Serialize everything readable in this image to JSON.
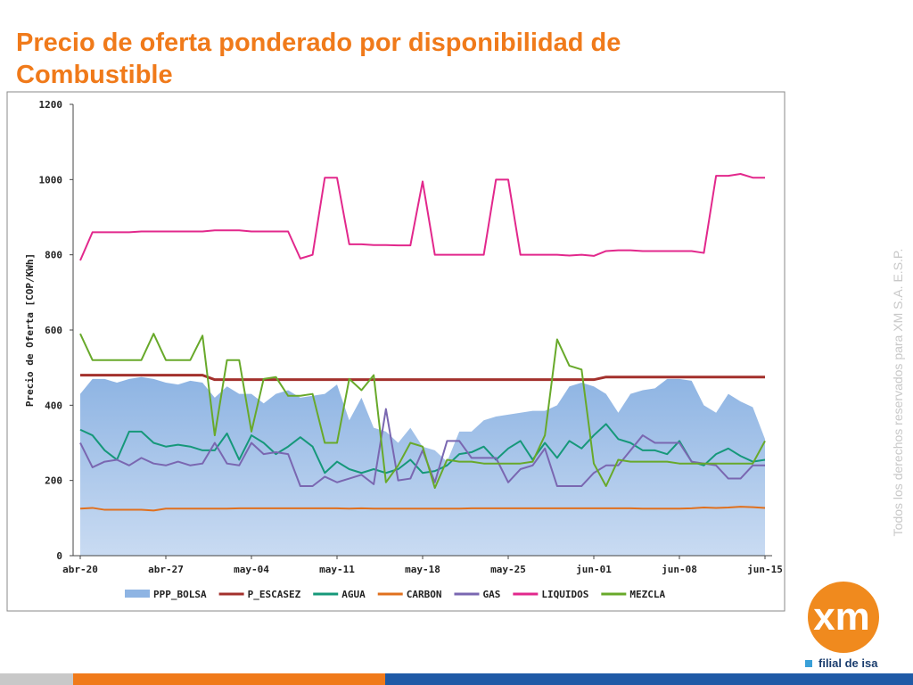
{
  "chart_data": {
    "type": "line",
    "title": "Precio de oferta ponderado por disponibilidad de Combustible",
    "ylabel": "Precio de Oferta [COP/KWh]",
    "categories": [
      "abr-20",
      null,
      null,
      null,
      null,
      null,
      null,
      "abr-27",
      null,
      null,
      null,
      null,
      null,
      null,
      "may-04",
      null,
      null,
      null,
      null,
      null,
      null,
      "may-11",
      null,
      null,
      null,
      null,
      null,
      null,
      "may-18",
      null,
      null,
      null,
      null,
      null,
      null,
      "may-25",
      null,
      null,
      null,
      null,
      null,
      null,
      "jun-01",
      null,
      null,
      null,
      null,
      null,
      null,
      "jun-08",
      null,
      null,
      null,
      null,
      null,
      null,
      "jun-15"
    ],
    "ylim": [
      0,
      1200
    ],
    "yticks": [
      0,
      200,
      400,
      600,
      800,
      1000,
      1200
    ],
    "grid": false,
    "series": [
      {
        "name": "PPP_BOLSA",
        "style": "area",
        "color": "#8eb4e3",
        "values": [
          430,
          470,
          470,
          460,
          470,
          475,
          470,
          460,
          455,
          465,
          460,
          420,
          450,
          430,
          430,
          405,
          430,
          440,
          420,
          425,
          430,
          455,
          360,
          420,
          340,
          330,
          300,
          340,
          290,
          280,
          250,
          330,
          330,
          360,
          370,
          375,
          380,
          385,
          385,
          400,
          450,
          460,
          450,
          430,
          380,
          430,
          440,
          445,
          470,
          470,
          465,
          400,
          380,
          430,
          410,
          395,
          310
        ]
      },
      {
        "name": "P_ESCASEZ",
        "style": "line",
        "color": "#a3302c",
        "values": [
          480,
          480,
          480,
          480,
          480,
          480,
          480,
          480,
          480,
          480,
          480,
          468,
          468,
          468,
          468,
          468,
          468,
          468,
          468,
          468,
          468,
          468,
          468,
          468,
          468,
          468,
          468,
          468,
          468,
          468,
          468,
          468,
          468,
          468,
          468,
          468,
          468,
          468,
          468,
          468,
          468,
          468,
          468,
          475,
          475,
          475,
          475,
          475,
          475,
          475,
          475,
          475,
          475,
          475,
          475,
          475,
          475
        ]
      },
      {
        "name": "AGUA",
        "style": "line",
        "color": "#16987a",
        "values": [
          335,
          320,
          280,
          255,
          330,
          330,
          300,
          290,
          295,
          290,
          280,
          280,
          325,
          255,
          320,
          300,
          270,
          290,
          315,
          290,
          220,
          250,
          230,
          220,
          230,
          220,
          230,
          255,
          220,
          225,
          240,
          270,
          275,
          290,
          255,
          285,
          305,
          255,
          300,
          260,
          305,
          285,
          320,
          350,
          310,
          300,
          280,
          280,
          270,
          305,
          250,
          240,
          270,
          285,
          265,
          250,
          255
        ]
      },
      {
        "name": "CARBON",
        "style": "line",
        "color": "#e0701e",
        "values": [
          125,
          127,
          122,
          122,
          122,
          122,
          120,
          125,
          125,
          125,
          125,
          125,
          125,
          126,
          126,
          126,
          126,
          126,
          126,
          126,
          126,
          126,
          125,
          126,
          125,
          125,
          125,
          125,
          125,
          125,
          125,
          125,
          126,
          126,
          126,
          126,
          126,
          126,
          126,
          126,
          126,
          126,
          126,
          126,
          126,
          126,
          125,
          125,
          125,
          125,
          126,
          128,
          127,
          128,
          130,
          129,
          127
        ]
      },
      {
        "name": "GAS",
        "style": "line",
        "color": "#7a67b1",
        "values": [
          300,
          235,
          250,
          255,
          240,
          260,
          245,
          240,
          250,
          240,
          245,
          300,
          245,
          240,
          300,
          270,
          275,
          270,
          185,
          185,
          210,
          195,
          205,
          215,
          190,
          390,
          200,
          205,
          280,
          195,
          305,
          305,
          260,
          260,
          260,
          195,
          230,
          240,
          285,
          185,
          185,
          185,
          220,
          240,
          240,
          280,
          320,
          300,
          300,
          300,
          250,
          245,
          240,
          205,
          205,
          240,
          240
        ]
      },
      {
        "name": "LIQUIDOS",
        "style": "line",
        "color": "#e2288c",
        "values": [
          785,
          860,
          860,
          860,
          860,
          862,
          862,
          862,
          862,
          862,
          862,
          865,
          865,
          865,
          862,
          862,
          862,
          862,
          790,
          800,
          1005,
          1005,
          828,
          828,
          826,
          826,
          825,
          825,
          995,
          800,
          800,
          800,
          800,
          800,
          1000,
          1000,
          800,
          800,
          800,
          800,
          798,
          800,
          797,
          810,
          812,
          812,
          810,
          810,
          810,
          810,
          810,
          805,
          1010,
          1010,
          1015,
          1005,
          1005
        ]
      },
      {
        "name": "MEZCLA",
        "style": "line",
        "color": "#68a92a",
        "values": [
          590,
          520,
          520,
          520,
          520,
          520,
          590,
          520,
          520,
          520,
          585,
          320,
          520,
          520,
          330,
          470,
          475,
          425,
          425,
          430,
          300,
          300,
          470,
          440,
          480,
          195,
          240,
          300,
          290,
          180,
          255,
          250,
          250,
          245,
          245,
          245,
          245,
          250,
          320,
          575,
          505,
          495,
          245,
          185,
          255,
          250,
          250,
          250,
          250,
          245,
          245,
          245,
          245,
          245,
          245,
          245,
          305
        ]
      }
    ]
  },
  "side_note": "Todos los derechos reservados para XM S.A. E.S.P.",
  "logo": {
    "mark": "xm",
    "tagline": "filial de isa"
  }
}
